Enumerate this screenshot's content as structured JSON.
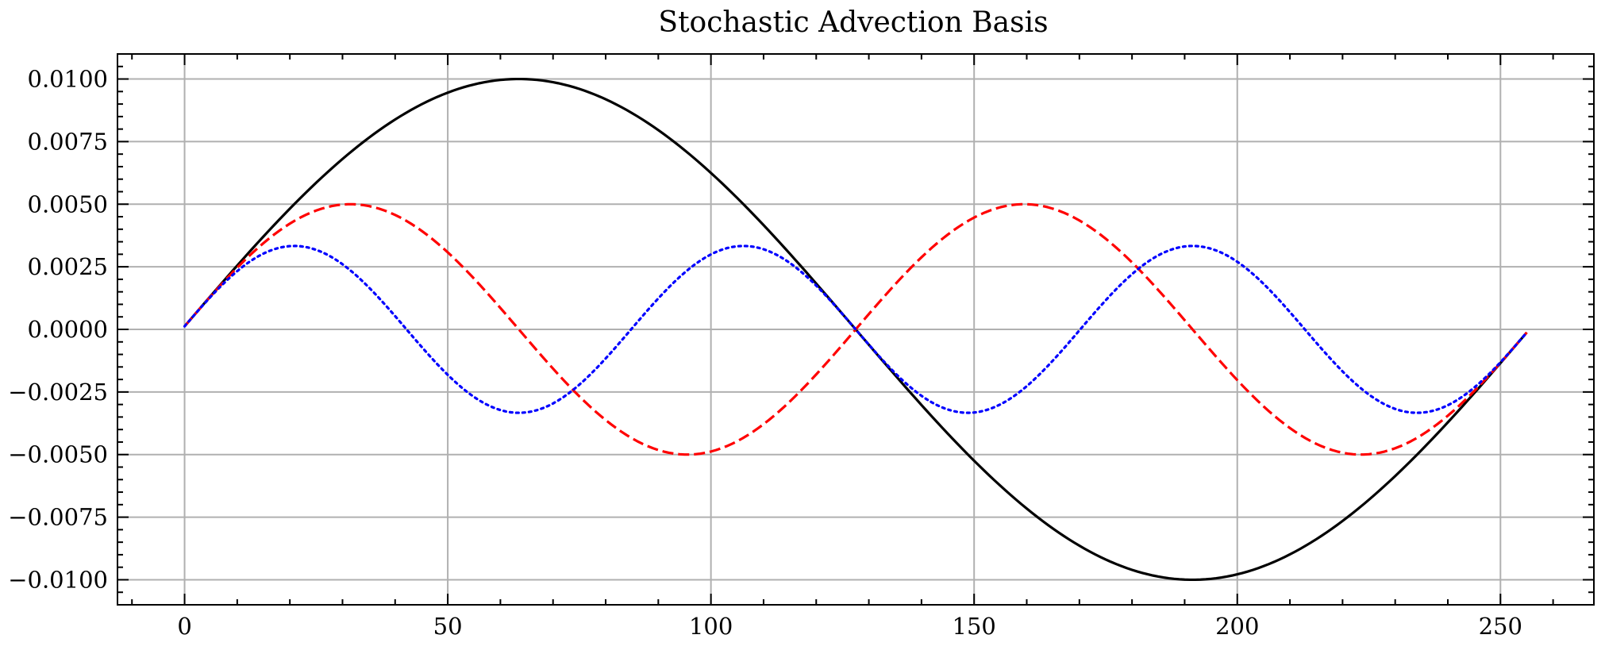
{
  "chart_data": {
    "type": "line",
    "title": "Stochastic Advection Basis",
    "xlabel": "",
    "ylabel": "",
    "xlim": [
      -12.75,
      267.75
    ],
    "ylim": [
      -0.011,
      0.011
    ],
    "x_ticks": [
      0,
      50,
      100,
      150,
      200,
      250
    ],
    "x_tick_labels": [
      "0",
      "50",
      "100",
      "150",
      "200",
      "250"
    ],
    "y_ticks": [
      0.01,
      0.0075,
      0.005,
      0.0025,
      0.0,
      -0.0025,
      -0.005,
      -0.0075,
      -0.01
    ],
    "y_tick_labels": [
      "0.0100",
      "0.0075",
      "0.0050",
      "0.0025",
      "0.0000",
      "−0.0025",
      "−0.0050",
      "−0.0075",
      "−0.0100"
    ],
    "x_minor_step": 10,
    "y_minor_step": 0.0005,
    "grid": true,
    "legend": "none",
    "series": [
      {
        "color": "#000000",
        "linestyle": "solid",
        "amplitude": 0.01,
        "frequency": 1,
        "x_start": 0,
        "x_end": 255,
        "n_points": 256
      },
      {
        "color": "#ff0000",
        "linestyle": "dashed",
        "amplitude": 0.005,
        "frequency": 2,
        "x_start": 0,
        "x_end": 255,
        "n_points": 256
      },
      {
        "color": "#0000ff",
        "linestyle": "dotted",
        "amplitude": 0.003333,
        "frequency": 3,
        "x_start": 0,
        "x_end": 255,
        "n_points": 256
      }
    ]
  }
}
